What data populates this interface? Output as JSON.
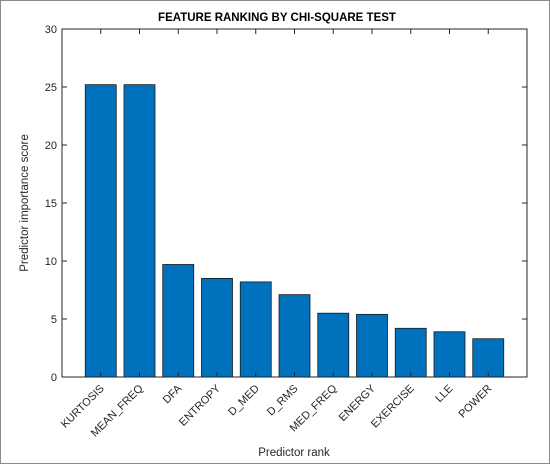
{
  "chart_data": {
    "type": "bar",
    "title": "FEATURE RANKING BY CHI-SQUARE TEST",
    "xlabel": "Predictor rank",
    "ylabel": "Predictor importance score",
    "categories": [
      "KURTOSIS",
      "MEAN_FREQ",
      "DFA",
      "ENTROPY",
      "D_MED",
      "D_RMS",
      "MED_FREQ",
      "ENERGY",
      "EXERCISE",
      "LLE",
      "POWER"
    ],
    "values": [
      25.2,
      25.2,
      9.7,
      8.5,
      8.2,
      7.1,
      5.5,
      5.4,
      4.2,
      3.9,
      3.3
    ],
    "ylim": [
      0,
      30
    ],
    "yticks": [
      0,
      5,
      10,
      15,
      20,
      25,
      30
    ],
    "grid": false,
    "bar_color": "#0072bd",
    "bar_edge_color": "#1a1a1a"
  }
}
